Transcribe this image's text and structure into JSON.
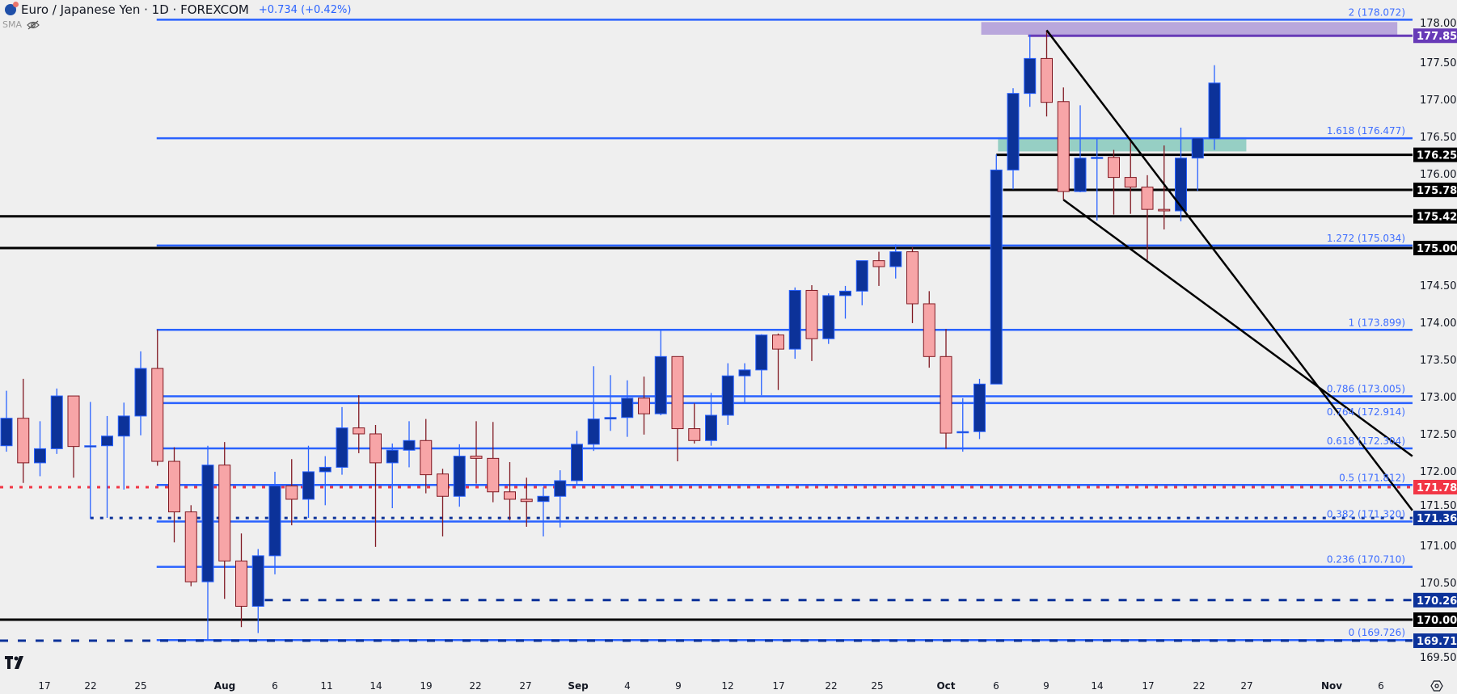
{
  "header": {
    "symbol_title": "Euro / Japanese Yen · 1D · FOREXCOM",
    "change": "+0.734 (+0.42%)",
    "indicator": "SMA"
  },
  "colors": {
    "background": "#efefef",
    "bull_body": "#0c3299",
    "bull_border": "#2962ff",
    "bear_body": "#f7a5a7",
    "bear_border": "#801922",
    "fib": "#2962ff",
    "purple_zone": "#b9a7dc",
    "purple_line": "#673ab7",
    "teal_zone": "#96cfc4",
    "red_line": "#f23645",
    "navy_line": "#0c3299",
    "black_line": "#000000"
  },
  "chart_data": {
    "type": "candlestick",
    "ylim": [
      169.22,
      178.34
    ],
    "y_ticks": [
      "178.000",
      "177.500",
      "177.000",
      "176.500",
      "176.000",
      "174.500",
      "174.000",
      "173.500",
      "173.000",
      "172.500",
      "172.000",
      "171.500",
      "171.000",
      "170.500",
      "169.500"
    ],
    "x_tick_labels": [
      "17",
      "22",
      "25",
      "Aug",
      "6",
      "11",
      "14",
      "19",
      "22",
      "27",
      "Sep",
      "4",
      "9",
      "12",
      "17",
      "22",
      "25",
      "Oct",
      "6",
      "9",
      "14",
      "17",
      "22",
      "27",
      "Nov",
      "6"
    ],
    "candles_ohlc": [
      [
        172.34,
        173.08,
        172.26,
        172.71
      ],
      [
        172.71,
        173.24,
        171.84,
        172.11
      ],
      [
        172.11,
        172.67,
        171.93,
        172.3
      ],
      [
        172.3,
        173.11,
        172.23,
        173.01
      ],
      [
        173.01,
        173.01,
        171.91,
        172.33
      ],
      [
        172.33,
        172.93,
        171.36,
        172.34
      ],
      [
        172.34,
        172.74,
        171.37,
        172.47
      ],
      [
        172.47,
        172.92,
        171.75,
        172.74
      ],
      [
        172.74,
        173.61,
        172.48,
        173.38
      ],
      [
        173.38,
        173.9,
        172.07,
        172.13
      ],
      [
        172.13,
        172.32,
        171.04,
        171.45
      ],
      [
        171.45,
        171.54,
        170.45,
        170.51
      ],
      [
        170.51,
        172.34,
        169.72,
        172.08
      ],
      [
        172.08,
        172.39,
        170.28,
        170.79
      ],
      [
        170.79,
        171.16,
        169.9,
        170.18
      ],
      [
        170.18,
        170.95,
        169.82,
        170.86
      ],
      [
        170.86,
        171.99,
        170.61,
        171.8
      ],
      [
        171.8,
        172.16,
        171.27,
        171.62
      ],
      [
        171.62,
        172.34,
        171.37,
        171.99
      ],
      [
        171.99,
        172.2,
        171.54,
        172.05
      ],
      [
        172.05,
        172.86,
        171.95,
        172.58
      ],
      [
        172.58,
        173.02,
        172.24,
        172.5
      ],
      [
        172.5,
        172.62,
        170.98,
        172.11
      ],
      [
        172.11,
        172.37,
        171.5,
        172.28
      ],
      [
        172.28,
        172.67,
        172.05,
        172.41
      ],
      [
        172.41,
        172.7,
        171.7,
        171.95
      ],
      [
        171.96,
        172.03,
        171.12,
        171.66
      ],
      [
        171.66,
        172.36,
        171.52,
        172.2
      ],
      [
        172.2,
        172.67,
        171.83,
        172.17
      ],
      [
        172.17,
        172.66,
        171.58,
        171.72
      ],
      [
        171.72,
        172.12,
        171.34,
        171.62
      ],
      [
        171.62,
        171.91,
        171.25,
        171.59
      ],
      [
        171.59,
        171.78,
        171.12,
        171.66
      ],
      [
        171.66,
        172.01,
        171.24,
        171.87
      ],
      [
        171.87,
        172.54,
        171.82,
        172.36
      ],
      [
        172.36,
        173.41,
        172.27,
        172.7
      ],
      [
        172.7,
        173.29,
        172.54,
        172.72
      ],
      [
        172.72,
        173.22,
        172.46,
        172.98
      ],
      [
        172.98,
        173.27,
        172.49,
        172.77
      ],
      [
        172.77,
        173.89,
        172.75,
        173.54
      ],
      [
        173.54,
        173.54,
        172.13,
        172.57
      ],
      [
        172.57,
        172.91,
        172.37,
        172.41
      ],
      [
        172.41,
        173.05,
        172.34,
        172.75
      ],
      [
        172.75,
        173.45,
        172.62,
        173.28
      ],
      [
        173.28,
        173.45,
        172.92,
        173.36
      ],
      [
        173.36,
        173.84,
        173.02,
        173.83
      ],
      [
        173.83,
        173.85,
        173.09,
        173.64
      ],
      [
        173.64,
        174.47,
        173.51,
        174.43
      ],
      [
        174.43,
        174.5,
        173.48,
        173.78
      ],
      [
        173.78,
        174.39,
        173.71,
        174.36
      ],
      [
        174.36,
        174.49,
        174.05,
        174.42
      ],
      [
        174.42,
        174.83,
        174.23,
        174.83
      ],
      [
        174.83,
        174.95,
        174.49,
        174.75
      ],
      [
        174.75,
        175.05,
        174.59,
        174.95
      ],
      [
        174.95,
        175.01,
        173.99,
        174.25
      ],
      [
        174.25,
        174.42,
        173.39,
        173.54
      ],
      [
        173.54,
        173.91,
        172.3,
        172.51
      ],
      [
        172.52,
        172.98,
        172.26,
        172.53
      ],
      [
        172.53,
        173.24,
        172.43,
        173.17
      ],
      [
        173.17,
        176.26,
        173.17,
        176.05
      ],
      [
        176.05,
        177.15,
        175.79,
        177.08
      ],
      [
        177.08,
        177.87,
        176.9,
        177.55
      ],
      [
        177.55,
        177.93,
        176.77,
        176.96
      ],
      [
        176.97,
        177.16,
        175.65,
        175.76
      ],
      [
        175.76,
        176.92,
        175.75,
        176.21
      ],
      [
        176.21,
        176.47,
        175.37,
        176.22
      ],
      [
        176.22,
        176.32,
        175.45,
        175.95
      ],
      [
        175.95,
        176.47,
        175.46,
        175.82
      ],
      [
        175.82,
        175.98,
        174.84,
        175.52
      ],
      [
        175.52,
        176.38,
        175.25,
        175.5
      ],
      [
        175.5,
        176.62,
        175.36,
        176.21
      ],
      [
        176.21,
        176.48,
        175.77,
        176.48
      ],
      [
        176.47,
        177.46,
        176.32,
        177.22
      ]
    ],
    "fib_levels": [
      {
        "label": "2 (178.072)",
        "price": 178.072
      },
      {
        "label": "1.618 (176.477)",
        "price": 176.477
      },
      {
        "label": "1.272 (175.034)",
        "price": 175.034
      },
      {
        "label": "1 (173.899)",
        "price": 173.899
      },
      {
        "label": "0.786 (173.005)",
        "price": 173.005
      },
      {
        "label": "0.764 (172.914)",
        "price": 172.914
      },
      {
        "label": "0.618 (172.304)",
        "price": 172.304
      },
      {
        "label": "0.5 (171.812)",
        "price": 171.812
      },
      {
        "label": "0.382 (171.320)",
        "price": 171.32
      },
      {
        "label": "0.236 (170.710)",
        "price": 170.71
      },
      {
        "label": "0 (169.726)",
        "price": 169.726
      }
    ],
    "fib_start_bar": 9,
    "horizontal_lines": [
      {
        "label": "177.856",
        "price": 177.856,
        "color": "#673ab7",
        "style": "solid",
        "start_bar": 60.9
      },
      {
        "label": "176.254",
        "price": 176.254,
        "color": "#000000",
        "style": "solid",
        "start_bar": 59
      },
      {
        "label": "175.782",
        "price": 175.782,
        "color": "#000000",
        "style": "solid",
        "start_bar": 59.4
      },
      {
        "label": "175.427",
        "price": 175.427,
        "color": "#000000",
        "style": "solid",
        "start_bar": -1
      },
      {
        "label": "175.000",
        "price": 175.0,
        "color": "#000000",
        "style": "solid",
        "start_bar": -1
      },
      {
        "label": "171.783",
        "price": 171.783,
        "color": "#f23645",
        "style": "dotted",
        "start_bar": -1
      },
      {
        "label": "171.368",
        "price": 171.368,
        "color": "#0c3299",
        "style": "dotted",
        "start_bar": 5
      },
      {
        "label": "170.263",
        "price": 170.263,
        "color": "#0c3299",
        "style": "dashed",
        "start_bar": 15.4
      },
      {
        "label": "170.000",
        "price": 170.0,
        "color": "#000000",
        "style": "solid",
        "start_bar": -1
      },
      {
        "label": "169.717",
        "price": 169.717,
        "color": "#0c3299",
        "style": "dashed",
        "start_bar": -1
      }
    ],
    "zones": [
      {
        "name": "purple",
        "from_bar": 58.1,
        "to_bar": 82.9,
        "top": 178.04,
        "bottom": 177.87,
        "color": "#b9a7dc"
      },
      {
        "name": "teal",
        "from_bar": 59.1,
        "to_bar": 73.9,
        "top": 176.49,
        "bottom": 176.3,
        "color": "#96cfc4"
      }
    ],
    "trendlines": [
      {
        "from": {
          "bar": 62,
          "price": 177.93
        },
        "to": {
          "bar": 83.8,
          "price": 171.47
        }
      },
      {
        "from": {
          "bar": 63,
          "price": 175.65
        },
        "to": {
          "bar": 83.8,
          "price": 172.2
        }
      }
    ]
  }
}
